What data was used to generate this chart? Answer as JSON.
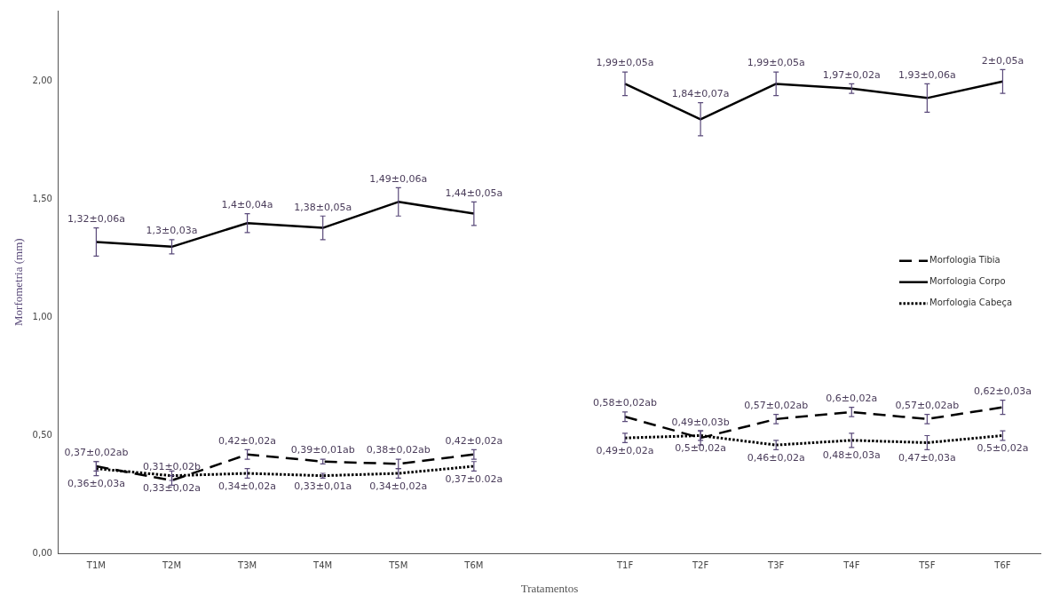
{
  "chart_data": {
    "type": "line",
    "xlabel": "Tratamentos",
    "ylabel": "Morfometria (mm)",
    "categories": [
      "T1M",
      "T2M",
      "T3M",
      "T4M",
      "T5M",
      "T6M",
      null,
      "T1F",
      "T2F",
      "T3F",
      "T4F",
      "T5F",
      "T6F"
    ],
    "ylim": [
      0,
      2.3
    ],
    "yticks": [
      {
        "value": 0,
        "label": "0,00"
      },
      {
        "value": 0.5,
        "label": "0,50"
      },
      {
        "value": 1,
        "label": "1,00"
      },
      {
        "value": 1.5,
        "label": "1,50"
      },
      {
        "value": 2,
        "label": "2,00"
      }
    ],
    "grid": false,
    "legend": "right",
    "marker": "none",
    "series": [
      {
        "name": "Morfologia Tibia",
        "color": "#000000",
        "line_style": "dashed",
        "values": [
          0.37,
          0.31,
          0.42,
          0.39,
          0.38,
          0.42,
          null,
          0.58,
          0.49,
          0.57,
          0.6,
          0.57,
          0.62
        ],
        "errors": [
          0.02,
          0.02,
          0.02,
          0.01,
          0.02,
          0.02,
          null,
          0.02,
          0.03,
          0.02,
          0.02,
          0.02,
          0.03
        ],
        "value_labels": [
          "0,37±0,02ab",
          "0,31±0,02b",
          "0,42±0,02a",
          "0,39±0,01ab",
          "0,38±0,02ab",
          "0,42±0,02a",
          null,
          "0,58±0,02ab",
          "0,49±0,03b",
          "0,57±0,02ab",
          "0,6±0,02a",
          "0,57±0,02ab",
          "0,62±0,03a"
        ]
      },
      {
        "name": "Morfologia Corpo",
        "color": "#000000",
        "line_style": "solid",
        "values": [
          1.32,
          1.3,
          1.4,
          1.38,
          1.49,
          1.44,
          null,
          1.99,
          1.84,
          1.99,
          1.97,
          1.93,
          2
        ],
        "errors": [
          0.06,
          0.03,
          0.04,
          0.05,
          0.06,
          0.05,
          null,
          0.05,
          0.07,
          0.05,
          0.02,
          0.06,
          0.05
        ],
        "value_labels": [
          "1,32±0,06a",
          "1,3±0,03a",
          "1,4±0,04a",
          "1,38±0,05a",
          "1,49±0,06a",
          "1,44±0,05a",
          null,
          "1,99±0,05a",
          "1,84±0,07a",
          "1,99±0,05a",
          "1,97±0,02a",
          "1,93±0,06a",
          "2±0,05a"
        ]
      },
      {
        "name": "Morfologia Cabeça",
        "color": "#000000",
        "line_style": "dotted",
        "values": [
          0.36,
          0.33,
          0.34,
          0.33,
          0.34,
          0.37,
          null,
          0.49,
          0.5,
          0.46,
          0.48,
          0.47,
          0.5
        ],
        "errors": [
          0.03,
          0.02,
          0.02,
          0.01,
          0.02,
          0.02,
          null,
          0.02,
          0.02,
          0.02,
          0.03,
          0.03,
          0.02
        ],
        "value_labels": [
          "0,36±0,03a",
          "0,33±0,02a",
          "0,34±0,02a",
          "0,33±0,01a",
          "0,34±0,02a",
          "0,37±0.02a",
          null,
          "0,49±0,02a",
          "0,5±0,02a",
          "0,46±0,02a",
          "0,48±0,03a",
          "0,47±0,03a",
          "0,5±0,02a"
        ]
      }
    ]
  }
}
